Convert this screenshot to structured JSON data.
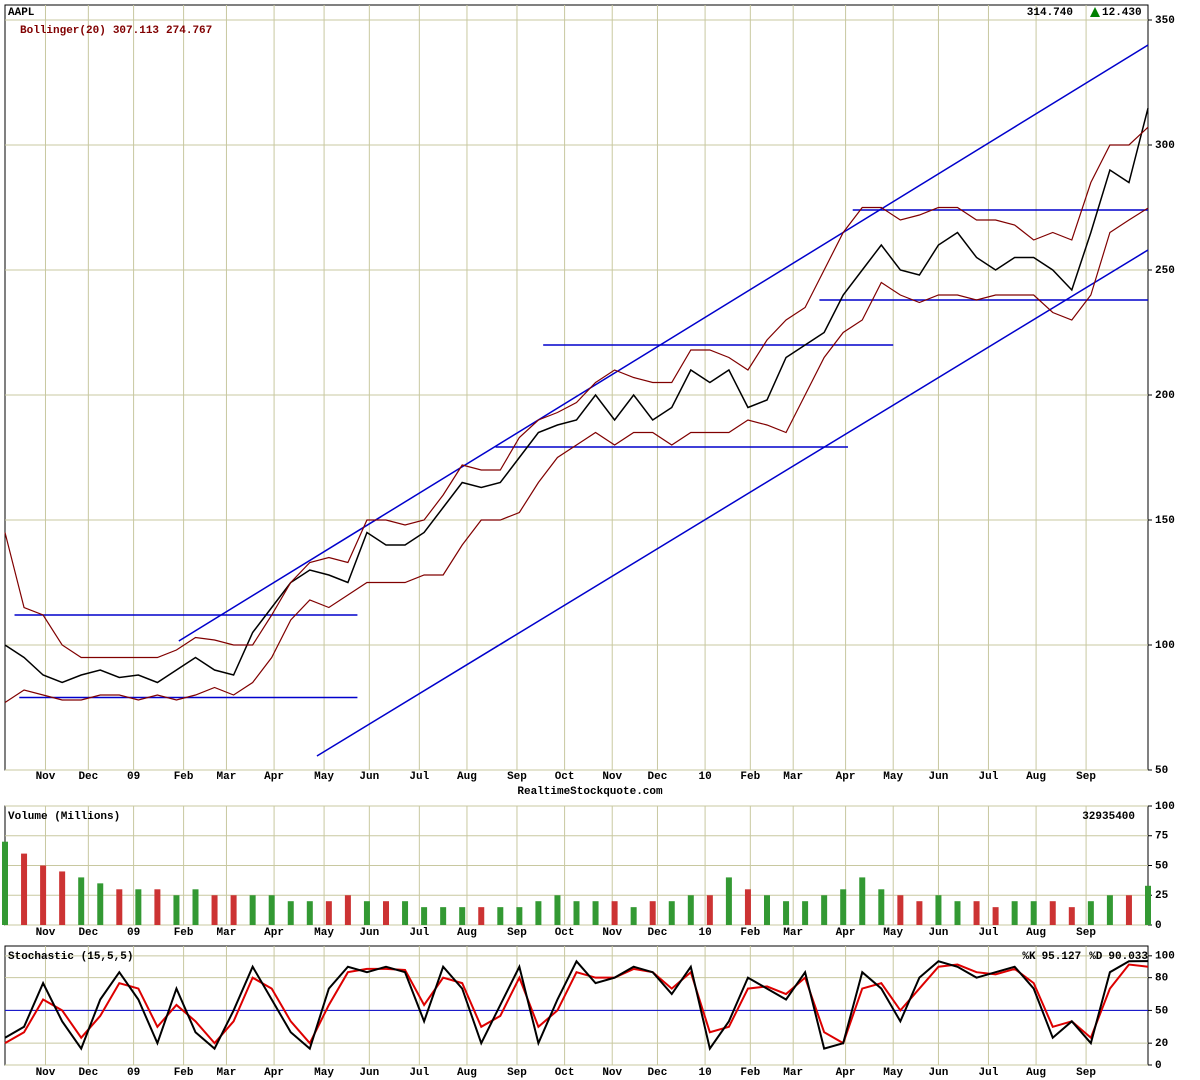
{
  "chart_data": [
    {
      "type": "line",
      "title": "AAPL",
      "last": "314.740",
      "change": "12.430",
      "indicator": "Bollinger(20)",
      "upper_last": "307.113",
      "lower_last": "274.767",
      "source": "RealtimeStockquote.com",
      "x": [
        0,
        8,
        16,
        24,
        32,
        40,
        48,
        56,
        64,
        72,
        80,
        88,
        96,
        104,
        112,
        120,
        128,
        136,
        144,
        152,
        160,
        168,
        176,
        184,
        192,
        200,
        208,
        216,
        224,
        232,
        240,
        248,
        256,
        264,
        272,
        280,
        288,
        296,
        304,
        312,
        320,
        328,
        336,
        344,
        352,
        360,
        368,
        376,
        384,
        392,
        400,
        408,
        416,
        424,
        432,
        440,
        448,
        456,
        464,
        472,
        480
      ],
      "xlim": [
        0,
        480
      ],
      "xticks": [
        {
          "value": 17,
          "label": "Nov"
        },
        {
          "value": 35,
          "label": "Dec"
        },
        {
          "value": 54,
          "label": "09"
        },
        {
          "value": 75,
          "label": "Feb"
        },
        {
          "value": 93,
          "label": "Mar"
        },
        {
          "value": 113,
          "label": "Apr"
        },
        {
          "value": 134,
          "label": "May"
        },
        {
          "value": 153,
          "label": "Jun"
        },
        {
          "value": 174,
          "label": "Jul"
        },
        {
          "value": 194,
          "label": "Aug"
        },
        {
          "value": 215,
          "label": "Sep"
        },
        {
          "value": 235,
          "label": "Oct"
        },
        {
          "value": 255,
          "label": "Nov"
        },
        {
          "value": 274,
          "label": "Dec"
        },
        {
          "value": 294,
          "label": "10"
        },
        {
          "value": 313,
          "label": "Feb"
        },
        {
          "value": 331,
          "label": "Mar"
        },
        {
          "value": 353,
          "label": "Apr"
        },
        {
          "value": 373,
          "label": "May"
        },
        {
          "value": 392,
          "label": "Jun"
        },
        {
          "value": 413,
          "label": "Jul"
        },
        {
          "value": 433,
          "label": "Aug"
        },
        {
          "value": 454,
          "label": "Sep"
        }
      ],
      "ylim": [
        50,
        356
      ],
      "yticks": [
        50,
        100,
        150,
        200,
        250,
        300,
        350
      ],
      "grid": true,
      "series": [
        {
          "color": "#000000",
          "values": [
            100,
            95,
            88,
            85,
            88,
            90,
            87,
            88,
            85,
            90,
            95,
            90,
            88,
            105,
            115,
            125,
            130,
            128,
            125,
            145,
            140,
            140,
            145,
            155,
            165,
            163,
            165,
            175,
            185,
            188,
            190,
            200,
            190,
            200,
            190,
            195,
            210,
            205,
            210,
            195,
            198,
            215,
            220,
            225,
            240,
            250,
            260,
            250,
            248,
            260,
            265,
            255,
            250,
            255,
            255,
            250,
            242,
            265,
            290,
            285,
            314.74
          ]
        },
        {
          "color": "#800000",
          "values": [
            145,
            115,
            112,
            100,
            95,
            95,
            95,
            95,
            95,
            98,
            103,
            102,
            100,
            100,
            112,
            125,
            133,
            135,
            133,
            150,
            150,
            148,
            150,
            160,
            172,
            170,
            170,
            183,
            190,
            193,
            197,
            205,
            210,
            207,
            205,
            205,
            218,
            218,
            215,
            210,
            222,
            230,
            235,
            250,
            265,
            275,
            275,
            270,
            272,
            275,
            275,
            270,
            270,
            268,
            262,
            265,
            262,
            285,
            300,
            300,
            307.113
          ]
        },
        {
          "color": "#800000",
          "values": [
            77,
            82,
            80,
            78,
            78,
            80,
            80,
            78,
            80,
            78,
            80,
            83,
            80,
            85,
            95,
            110,
            118,
            115,
            120,
            125,
            125,
            125,
            128,
            128,
            140,
            150,
            150,
            153,
            165,
            175,
            180,
            185,
            180,
            185,
            185,
            180,
            185,
            185,
            185,
            190,
            188,
            185,
            200,
            215,
            225,
            230,
            245,
            240,
            237,
            240,
            240,
            238,
            240,
            240,
            240,
            233,
            230,
            240,
            265,
            270,
            274.767
          ]
        }
      ],
      "lines_color": "#0000cc",
      "lines": [
        {
          "x": [
            4,
            148
          ],
          "y": [
            112,
            112
          ]
        },
        {
          "x": [
            6,
            148
          ],
          "y": [
            79,
            79
          ]
        },
        {
          "x": [
            73,
            480
          ],
          "y": [
            101.6,
            340
          ]
        },
        {
          "x": [
            131,
            480
          ],
          "y": [
            55.6,
            258
          ]
        },
        {
          "x": [
            226,
            373
          ],
          "y": [
            220,
            220
          ]
        },
        {
          "x": [
            206,
            354
          ],
          "y": [
            179.2,
            179.2
          ]
        },
        {
          "x": [
            356,
            480
          ],
          "y": [
            274,
            274
          ]
        },
        {
          "x": [
            342,
            480
          ],
          "y": [
            238,
            238
          ]
        }
      ]
    },
    {
      "type": "bar",
      "title": "Volume (Millions)",
      "last": 32935400,
      "x": [
        0,
        8,
        16,
        24,
        32,
        40,
        48,
        56,
        64,
        72,
        80,
        88,
        96,
        104,
        112,
        120,
        128,
        136,
        144,
        152,
        160,
        168,
        176,
        184,
        192,
        200,
        208,
        216,
        224,
        232,
        240,
        248,
        256,
        264,
        272,
        280,
        288,
        296,
        304,
        312,
        320,
        328,
        336,
        344,
        352,
        360,
        368,
        376,
        384,
        392,
        400,
        408,
        416,
        424,
        432,
        440,
        448,
        456,
        464,
        472,
        480
      ],
      "xlim": [
        0,
        480
      ],
      "xticks": [
        {
          "value": 17,
          "label": "Nov"
        },
        {
          "value": 35,
          "label": "Dec"
        },
        {
          "value": 54,
          "label": "09"
        },
        {
          "value": 75,
          "label": "Feb"
        },
        {
          "value": 93,
          "label": "Mar"
        },
        {
          "value": 113,
          "label": "Apr"
        },
        {
          "value": 134,
          "label": "May"
        },
        {
          "value": 153,
          "label": "Jun"
        },
        {
          "value": 174,
          "label": "Jul"
        },
        {
          "value": 194,
          "label": "Aug"
        },
        {
          "value": 215,
          "label": "Sep"
        },
        {
          "value": 235,
          "label": "Oct"
        },
        {
          "value": 255,
          "label": "Nov"
        },
        {
          "value": 274,
          "label": "Dec"
        },
        {
          "value": 294,
          "label": "10"
        },
        {
          "value": 313,
          "label": "Feb"
        },
        {
          "value": 331,
          "label": "Mar"
        },
        {
          "value": 353,
          "label": "Apr"
        },
        {
          "value": 373,
          "label": "May"
        },
        {
          "value": 392,
          "label": "Jun"
        },
        {
          "value": 413,
          "label": "Jul"
        },
        {
          "value": 433,
          "label": "Aug"
        },
        {
          "value": 454,
          "label": "Sep"
        }
      ],
      "ylim": [
        0,
        100
      ],
      "yticks": [
        0,
        25,
        50,
        75,
        100
      ],
      "grid": true,
      "colors": [
        "#cc3333",
        "#339933"
      ],
      "values": [
        70,
        60,
        50,
        45,
        40,
        35,
        30,
        30,
        30,
        25,
        30,
        25,
        25,
        25,
        25,
        20,
        20,
        20,
        25,
        20,
        20,
        20,
        15,
        15,
        15,
        15,
        15,
        15,
        20,
        25,
        20,
        20,
        20,
        15,
        20,
        20,
        25,
        25,
        40,
        30,
        25,
        20,
        20,
        25,
        30,
        40,
        30,
        25,
        20,
        25,
        20,
        20,
        15,
        20,
        20,
        20,
        15,
        20,
        25,
        25,
        32.9354
      ]
    },
    {
      "type": "line",
      "title": "Stochastic (15,5,5)",
      "x": [
        0,
        8,
        16,
        24,
        32,
        40,
        48,
        56,
        64,
        72,
        80,
        88,
        96,
        104,
        112,
        120,
        128,
        136,
        144,
        152,
        160,
        168,
        176,
        184,
        192,
        200,
        208,
        216,
        224,
        232,
        240,
        248,
        256,
        264,
        272,
        280,
        288,
        296,
        304,
        312,
        320,
        328,
        336,
        344,
        352,
        360,
        368,
        376,
        384,
        392,
        400,
        408,
        416,
        424,
        432,
        440,
        448,
        456,
        464,
        472,
        480
      ],
      "xlim": [
        0,
        480
      ],
      "xticks": [
        {
          "value": 17,
          "label": "Nov"
        },
        {
          "value": 35,
          "label": "Dec"
        },
        {
          "value": 54,
          "label": "09"
        },
        {
          "value": 75,
          "label": "Feb"
        },
        {
          "value": 93,
          "label": "Mar"
        },
        {
          "value": 113,
          "label": "Apr"
        },
        {
          "value": 134,
          "label": "May"
        },
        {
          "value": 153,
          "label": "Jun"
        },
        {
          "value": 174,
          "label": "Jul"
        },
        {
          "value": 194,
          "label": "Aug"
        },
        {
          "value": 215,
          "label": "Sep"
        },
        {
          "value": 235,
          "label": "Oct"
        },
        {
          "value": 255,
          "label": "Nov"
        },
        {
          "value": 274,
          "label": "Dec"
        },
        {
          "value": 294,
          "label": "10"
        },
        {
          "value": 313,
          "label": "Feb"
        },
        {
          "value": 331,
          "label": "Mar"
        },
        {
          "value": 353,
          "label": "Apr"
        },
        {
          "value": 373,
          "label": "May"
        },
        {
          "value": 392,
          "label": "Jun"
        },
        {
          "value": 413,
          "label": "Jul"
        },
        {
          "value": 433,
          "label": "Aug"
        },
        {
          "value": 454,
          "label": "Sep"
        }
      ],
      "ylim": [
        0,
        109
      ],
      "yticks": [
        0,
        20,
        50,
        80,
        100
      ],
      "grid": true,
      "midline": 50,
      "midline_color": "#0000cc",
      "series": [
        {
          "name": "%K",
          "color": "#000000",
          "last": "95.127",
          "values": [
            25,
            35,
            75,
            40,
            15,
            60,
            85,
            60,
            20,
            70,
            30,
            15,
            50,
            90,
            60,
            30,
            15,
            70,
            90,
            85,
            90,
            85,
            40,
            90,
            70,
            20,
            55,
            90,
            20,
            60,
            95,
            75,
            80,
            90,
            85,
            65,
            90,
            15,
            40,
            80,
            70,
            60,
            85,
            15,
            20,
            85,
            70,
            40,
            80,
            95,
            90,
            80,
            85,
            90,
            70,
            25,
            40,
            20,
            85,
            95,
            95.127
          ]
        },
        {
          "name": "%D",
          "color": "#dd0000",
          "last": "90.033",
          "values": [
            20,
            30,
            60,
            50,
            25,
            45,
            75,
            70,
            35,
            55,
            40,
            20,
            40,
            80,
            70,
            40,
            20,
            55,
            85,
            88,
            88,
            87,
            55,
            80,
            75,
            35,
            45,
            80,
            35,
            50,
            85,
            80,
            80,
            88,
            85,
            70,
            85,
            30,
            35,
            70,
            72,
            65,
            80,
            30,
            20,
            70,
            75,
            50,
            70,
            90,
            92,
            85,
            83,
            88,
            75,
            35,
            40,
            25,
            70,
            92,
            90.033
          ]
        }
      ]
    }
  ]
}
